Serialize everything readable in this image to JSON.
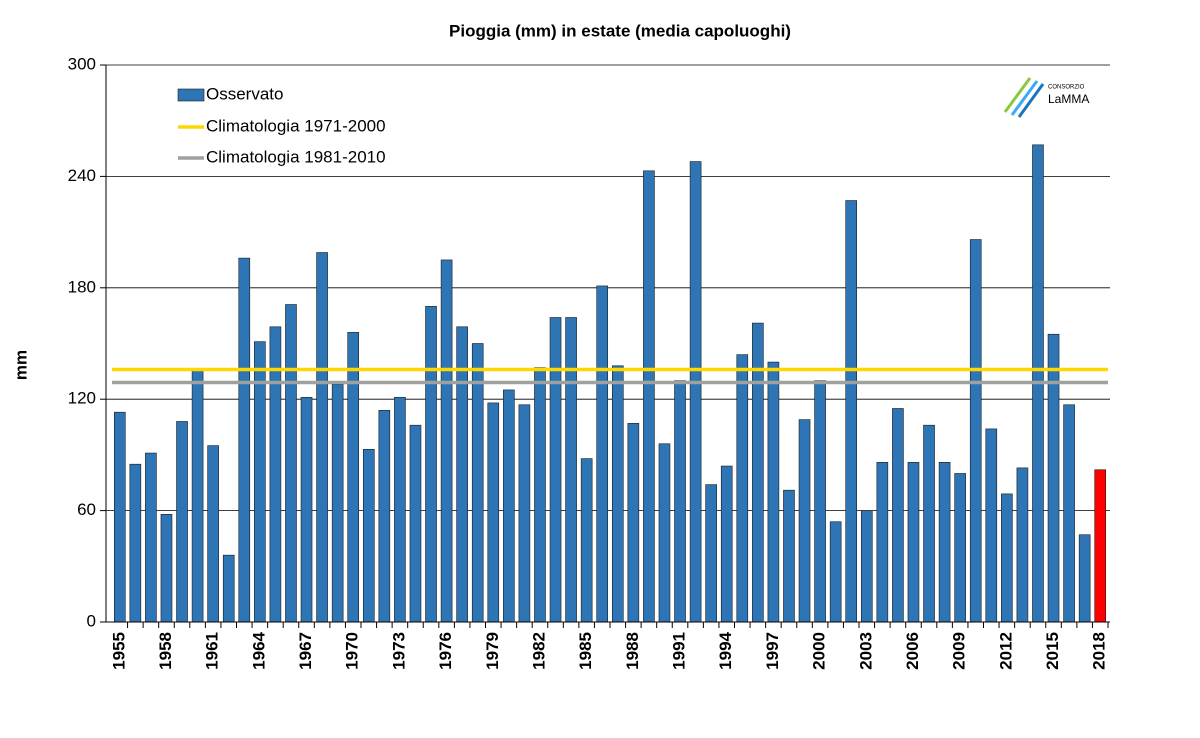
{
  "chart_data": {
    "type": "bar",
    "title": "Pioggia (mm)  in estate (media capoluoghi)",
    "y_label": "mm",
    "categories": [
      "1955",
      null,
      null,
      "1958",
      null,
      null,
      "1961",
      null,
      null,
      "1964",
      null,
      null,
      "1967",
      null,
      null,
      "1970",
      null,
      null,
      "1973",
      null,
      null,
      "1976",
      null,
      null,
      "1979",
      null,
      null,
      "1982",
      null,
      null,
      "1985",
      null,
      null,
      "1988",
      null,
      null,
      "1991",
      null,
      null,
      "1994",
      null,
      null,
      "1997",
      null,
      null,
      "2000",
      null,
      null,
      "2003",
      null,
      null,
      "2006",
      null,
      null,
      "2009",
      null,
      null,
      "2012",
      null,
      null,
      "2015",
      null,
      null,
      "2018"
    ],
    "series": [
      {
        "name": "Osservato",
        "color": "#2e75b6",
        "highlight_color": "#ff0000",
        "values": [
          113,
          85,
          91,
          58,
          108,
          136,
          95,
          36,
          196,
          151,
          159,
          171,
          121,
          199,
          128,
          156,
          93,
          114,
          121,
          106,
          170,
          195,
          159,
          150,
          118,
          125,
          117,
          137,
          164,
          164,
          88,
          181,
          138,
          107,
          243,
          96,
          130,
          248,
          74,
          84,
          144,
          161,
          140,
          71,
          109,
          130,
          54,
          227,
          60,
          86,
          115,
          86,
          106,
          86,
          80,
          206,
          104,
          69,
          83,
          257,
          155,
          117,
          47,
          82
        ]
      }
    ],
    "lines": [
      {
        "name": "Climatologia 1971-2000",
        "color": "#ffd700",
        "value": 136
      },
      {
        "name": "Climatologia 1981-2010",
        "color": "#a0a0a0",
        "value": 129
      }
    ],
    "ylim": [
      0,
      300
    ],
    "yticks": [
      0,
      60,
      120,
      180,
      240,
      300
    ],
    "grid": true,
    "legend": "top-left",
    "logo": {
      "small": "CONSORZIO",
      "name": "LaMMA"
    }
  }
}
